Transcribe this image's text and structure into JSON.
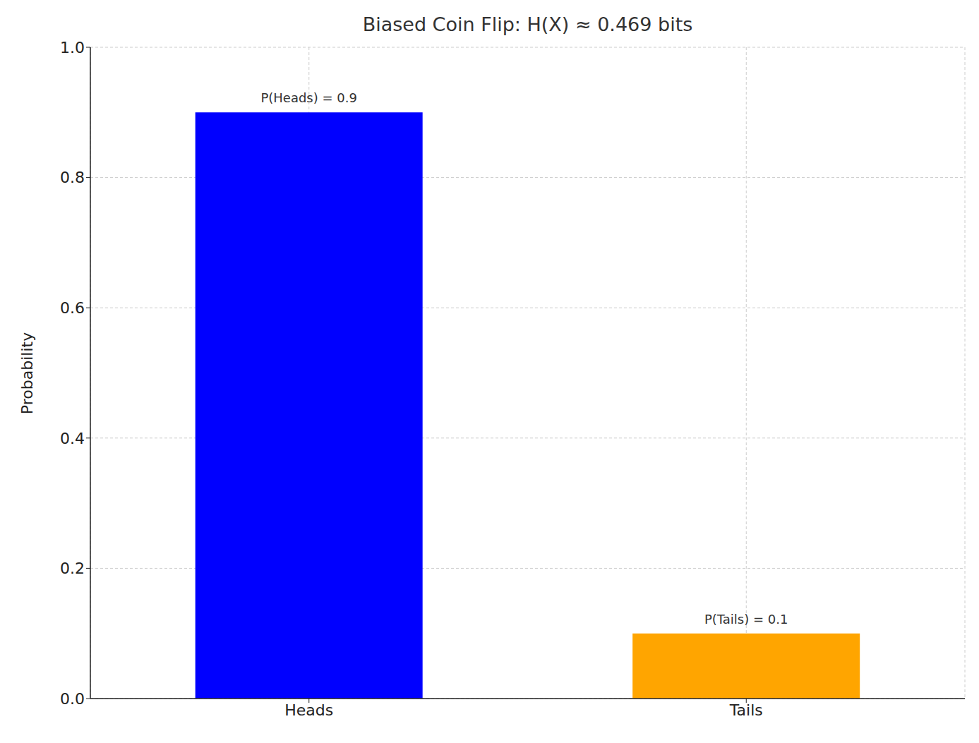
{
  "chart_data": {
    "type": "bar",
    "title": "Biased Coin Flip: H(X) ≈ 0.469 bits",
    "y_label": "Probability",
    "categories": [
      "Heads",
      "Tails"
    ],
    "values": [
      0.9,
      0.1
    ],
    "value_labels": [
      "P(Heads) = 0.9",
      "P(Tails) = 0.1"
    ],
    "colors": [
      "#0000ff",
      "#ffa500"
    ],
    "ylim": [
      0,
      1
    ],
    "yticks": [
      {
        "value": 0,
        "label": "0.0"
      },
      0.2,
      0.4,
      0.6,
      0.8,
      {
        "value": 1,
        "label": "1.0"
      }
    ],
    "grid": true,
    "data_labels": true
  }
}
